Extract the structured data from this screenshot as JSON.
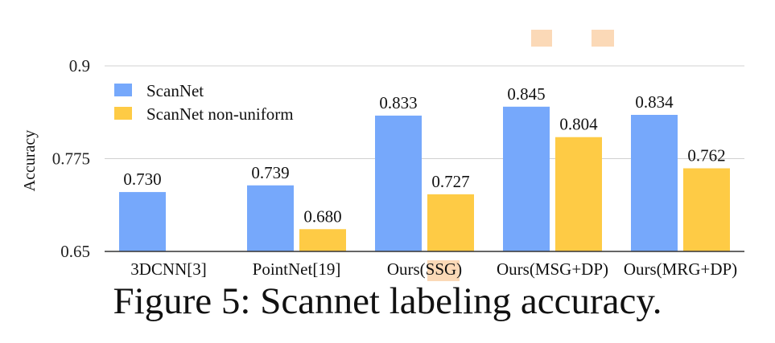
{
  "chart_data": {
    "type": "bar",
    "ylabel": "Accuracy",
    "xlabel": "",
    "ylim": [
      0.65,
      0.9
    ],
    "yticks": [
      "0.65",
      "0.775",
      "0.9"
    ],
    "categories": [
      "3DCNN[3]",
      "PointNet[19]",
      "Ours(SSG)",
      "Ours(MSG+DP)",
      "Ours(MRG+DP)"
    ],
    "series": [
      {
        "name": "ScanNet",
        "color": "#76a8fb",
        "values": [
          0.73,
          0.739,
          0.833,
          0.845,
          0.834
        ],
        "labels": [
          "0.730",
          "0.739",
          "0.833",
          "0.845",
          "0.834"
        ]
      },
      {
        "name": "ScanNet non-uniform",
        "color": "#fecb45",
        "values": [
          null,
          0.68,
          0.727,
          0.804,
          0.762
        ],
        "labels": [
          null,
          "0.680",
          "0.727",
          "0.804",
          "0.762"
        ]
      }
    ],
    "legend": "top-left",
    "grid": "horizontal"
  },
  "caption": "Figure 5: Scannet labeling accuracy.",
  "colors": {
    "highlight": "#fbd9b7",
    "grid": "#d0d0d0",
    "axis": "#333333"
  }
}
